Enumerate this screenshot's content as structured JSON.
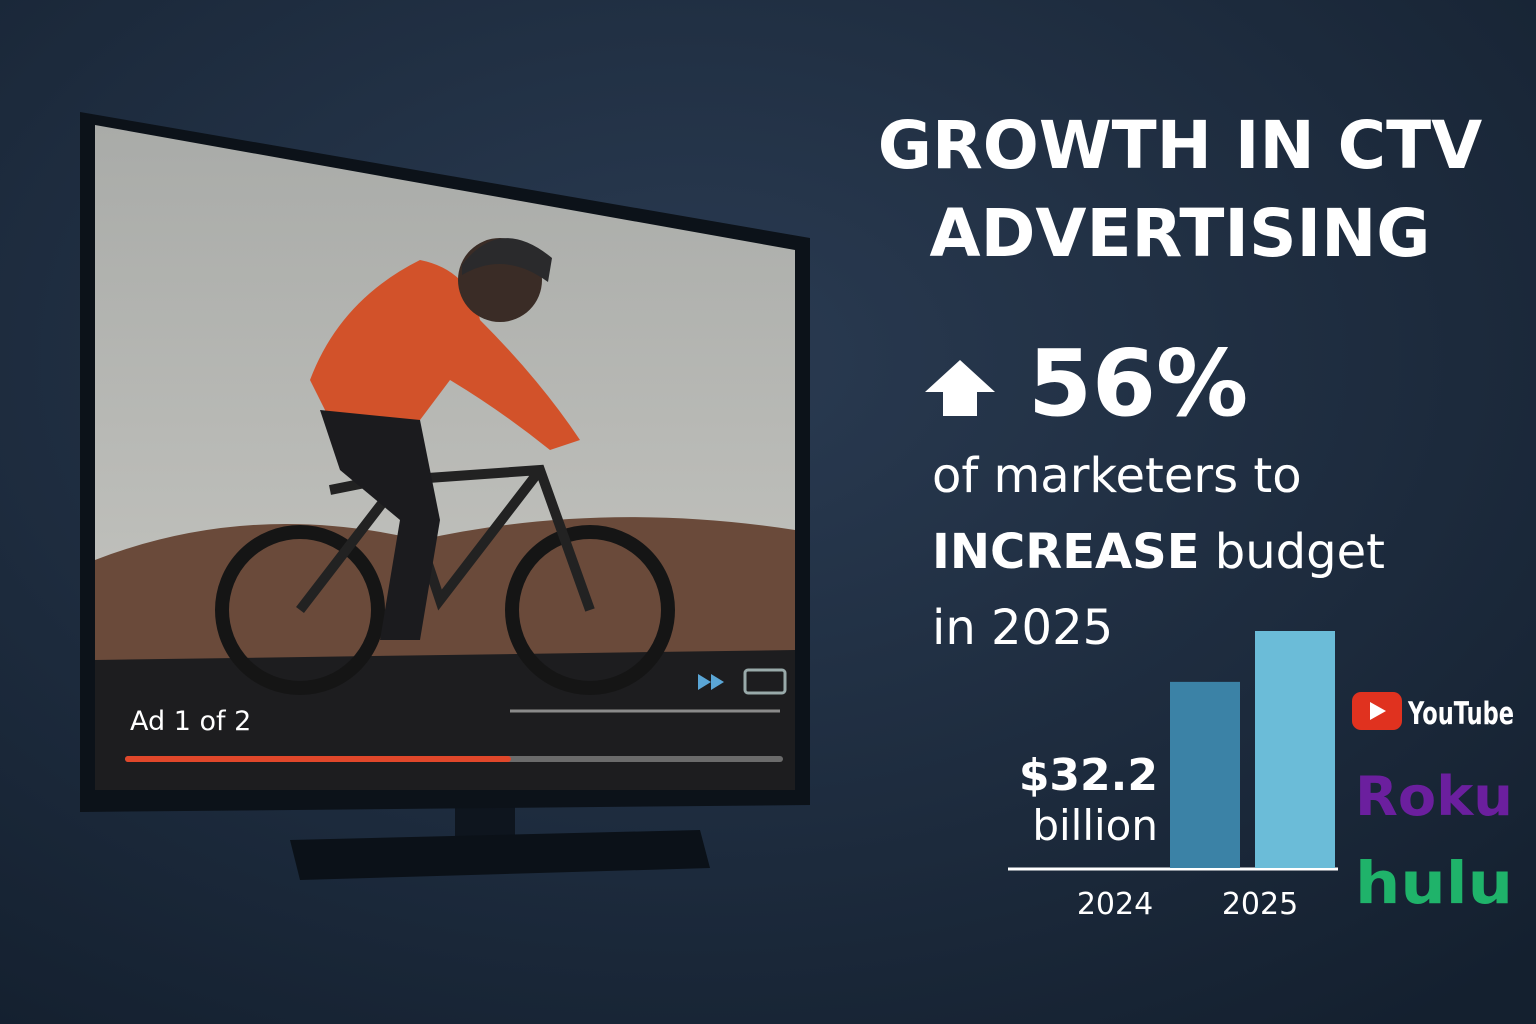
{
  "title": [
    "GROWTH IN CTV",
    "ADVERTISING"
  ],
  "ad_label": "Ad 1 of 2",
  "stat": {
    "value": "56%",
    "line1": "of marketers to",
    "emphasis": "INCREASE",
    "line2_rest": "budget",
    "line3": "in 2025"
  },
  "chart_data": {
    "type": "bar",
    "categories": [
      "2024",
      "2025"
    ],
    "values": [
      32.2,
      41
    ],
    "colors": [
      "#3b82a6",
      "#6bbcd8"
    ],
    "annotation": [
      "$32.2",
      "billion"
    ]
  },
  "platforms": [
    "YouTube",
    "Roku",
    "hulu"
  ]
}
